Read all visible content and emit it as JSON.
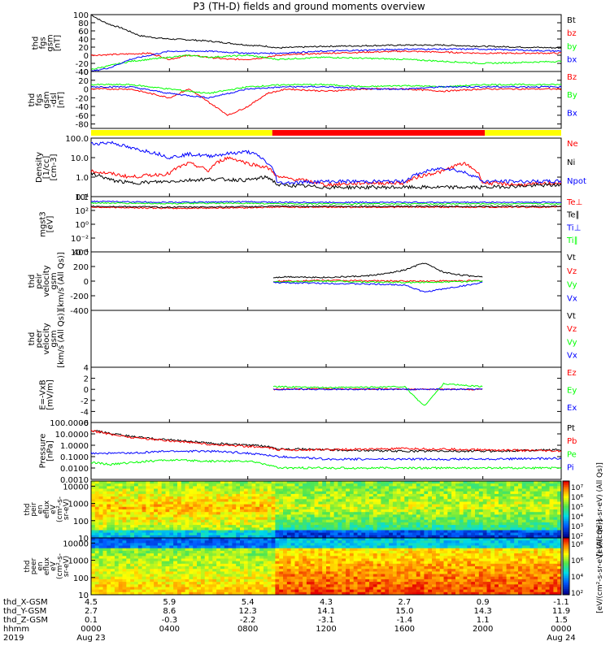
{
  "page": {
    "title": "P3 (TH-D) fields and ground moments overview"
  },
  "colors": {
    "black": "#000000",
    "red": "#ff0000",
    "green": "#00ff00",
    "blue": "#0000ff",
    "yellow": "#ffff00",
    "white": "#ffffff"
  },
  "status_bar": {
    "segments": [
      {
        "from_hour": 0,
        "to_hour": 9.25,
        "color": "#ffff00"
      },
      {
        "from_hour": 9.25,
        "to_hour": 20.1,
        "color": "#ff0000"
      },
      {
        "from_hour": 20.1,
        "to_hour": 24,
        "color": "#ffff00"
      }
    ]
  },
  "chart_data": [
    {
      "id": "fgs_gsm",
      "type": "line",
      "ylabel": [
        "thd",
        "fgs",
        "gsm",
        "[nT]"
      ],
      "ylim": [
        -40,
        100
      ],
      "yticks": [
        -40,
        -20,
        0,
        20,
        40,
        60,
        80,
        100
      ],
      "series": [
        {
          "name": "Bt",
          "color": "#000000",
          "x": [
            0,
            0.5,
            1,
            1.5,
            2,
            2.5,
            3,
            3.5,
            4,
            5,
            6,
            7,
            8,
            9,
            9.5,
            12,
            16,
            18,
            20,
            24
          ],
          "values": [
            100,
            85,
            75,
            68,
            58,
            48,
            45,
            42,
            40,
            38,
            35,
            30,
            25,
            22,
            18,
            22,
            25,
            25,
            22,
            18
          ]
        },
        {
          "name": "bz",
          "color": "#ff0000",
          "x": [
            0,
            3,
            4,
            5,
            6,
            7,
            8,
            9,
            9.5,
            12,
            16,
            20,
            24
          ],
          "values": [
            0,
            5,
            -10,
            0,
            -5,
            -10,
            -10,
            -5,
            0,
            5,
            10,
            5,
            5
          ]
        },
        {
          "name": "by",
          "color": "#00ff00",
          "x": [
            0,
            1,
            2,
            3,
            4,
            5,
            6,
            8,
            9.5,
            12,
            16,
            20,
            24
          ],
          "values": [
            -35,
            -25,
            -15,
            -10,
            -5,
            0,
            -5,
            0,
            -10,
            -5,
            -10,
            -20,
            -15
          ]
        },
        {
          "name": "bx",
          "color": "#0000ff",
          "x": [
            0,
            1,
            2,
            3,
            4,
            6,
            8,
            9.5,
            12,
            16,
            20,
            24
          ],
          "values": [
            -40,
            -30,
            -10,
            0,
            10,
            10,
            5,
            5,
            10,
            15,
            15,
            10
          ]
        }
      ]
    },
    {
      "id": "fgs_gse",
      "type": "line",
      "ylabel": [
        "thd",
        "fgs",
        "gsm",
        "-dsl",
        "[nT]"
      ],
      "ylim": [
        -90,
        40
      ],
      "yticks": [
        -80,
        -60,
        -40,
        -20,
        0,
        20,
        40
      ],
      "series": [
        {
          "name": "Bz",
          "color": "#ff0000",
          "x": [
            0,
            2,
            4,
            5,
            6,
            7,
            8,
            9,
            10,
            12,
            14,
            16,
            18,
            20,
            24
          ],
          "values": [
            0,
            0,
            -20,
            0,
            -30,
            -60,
            -40,
            -10,
            0,
            -5,
            0,
            0,
            -5,
            0,
            0
          ]
        },
        {
          "name": "By",
          "color": "#00ff00",
          "x": [
            0,
            2,
            4,
            6,
            8,
            10,
            12,
            14,
            16,
            18,
            20,
            24
          ],
          "values": [
            10,
            10,
            0,
            -10,
            5,
            10,
            10,
            5,
            8,
            5,
            10,
            10
          ]
        },
        {
          "name": "Bx",
          "color": "#0000ff",
          "x": [
            0,
            2,
            4,
            6,
            8,
            10,
            12,
            14,
            16,
            18,
            20,
            24
          ],
          "values": [
            5,
            5,
            -10,
            -20,
            0,
            5,
            5,
            0,
            0,
            5,
            5,
            5
          ]
        }
      ]
    },
    {
      "id": "density",
      "type": "line",
      "yscale": "log",
      "ylabel": [
        "Density",
        "[1/cc]",
        "[cm-3]"
      ],
      "ylim": [
        0.1,
        100
      ],
      "ytick_labels": [
        "0.1",
        "1.0",
        "10.0",
        "100.0"
      ],
      "yticks": [
        0.1,
        1,
        10,
        100
      ],
      "series": [
        {
          "name": "Ne",
          "color": "#ff0000",
          "x": [
            0,
            2,
            4,
            5,
            6,
            7,
            8,
            9,
            9.5,
            12,
            14,
            16,
            18,
            19,
            20,
            22,
            24
          ],
          "values": [
            2,
            1,
            1.5,
            5,
            2,
            10,
            5,
            3,
            1,
            0.4,
            0.5,
            0.5,
            2,
            5,
            0.5,
            0.4,
            0.5
          ]
        },
        {
          "name": "Ni",
          "color": "#000000",
          "x": [
            0,
            1,
            2,
            4,
            6,
            8,
            9,
            9.5,
            12,
            16,
            20,
            24
          ],
          "values": [
            1.5,
            0.7,
            0.5,
            0.6,
            0.8,
            0.7,
            1,
            0.4,
            0.3,
            0.3,
            0.3,
            0.4
          ]
        },
        {
          "name": "Npot",
          "color": "#0000ff",
          "x": [
            0,
            1,
            2,
            3,
            4,
            5,
            6,
            8,
            9,
            9.5,
            12,
            16,
            18,
            20,
            24
          ],
          "values": [
            50,
            60,
            30,
            20,
            10,
            15,
            12,
            20,
            5,
            0.5,
            0.6,
            0.6,
            3,
            0.6,
            0.6
          ]
        }
      ]
    },
    {
      "id": "temperature",
      "type": "line",
      "yscale": "log",
      "ylabel": [
        "mgst3",
        "[eV]"
      ],
      "ylim": [
        0.0001,
        10000
      ],
      "ytick_labels": [
        "10⁻⁴",
        "10⁻²",
        "10⁰",
        "10²",
        "10⁴"
      ],
      "yticks": [
        0.0001,
        0.01,
        1,
        100,
        10000
      ],
      "series": [
        {
          "name": "Te⊥",
          "color": "#ff0000",
          "x": [
            0,
            4,
            8,
            9.5,
            12,
            16,
            20,
            24
          ],
          "values": [
            300,
            200,
            250,
            300,
            300,
            300,
            300,
            300
          ]
        },
        {
          "name": "Te∥",
          "color": "#000000",
          "x": [
            0,
            4,
            8,
            9.5,
            12,
            16,
            20,
            24
          ],
          "values": [
            400,
            300,
            350,
            400,
            400,
            400,
            400,
            400
          ]
        },
        {
          "name": "Ti⊥",
          "color": "#0000ff",
          "x": [
            0,
            4,
            8,
            9.5,
            12,
            16,
            20,
            24
          ],
          "values": [
            2000,
            1500,
            1800,
            1500,
            1500,
            1500,
            1500,
            1500
          ]
        },
        {
          "name": "Ti∥",
          "color": "#00ff00",
          "x": [
            0,
            4,
            8,
            9.5,
            12,
            16,
            20,
            24
          ],
          "values": [
            1200,
            1000,
            1100,
            900,
            900,
            900,
            900,
            900
          ]
        }
      ]
    },
    {
      "id": "peir_velocity",
      "type": "line",
      "ylabel": [
        "thd",
        "peir",
        "velocity",
        "gsm",
        "[km/s (All Qs)]"
      ],
      "ylim": [
        -400,
        400
      ],
      "yticks": [
        -400,
        -200,
        0,
        200,
        400
      ],
      "series": [
        {
          "name": "Vt",
          "color": "#000000",
          "x": [
            9.3,
            10,
            12,
            14,
            15,
            16,
            17,
            18,
            19,
            20
          ],
          "values": [
            50,
            60,
            50,
            70,
            100,
            150,
            250,
            120,
            80,
            60
          ]
        },
        {
          "name": "Vz",
          "color": "#ff0000",
          "x": [
            9.3,
            12,
            16,
            20
          ],
          "values": [
            0,
            10,
            0,
            5
          ]
        },
        {
          "name": "Vy",
          "color": "#00ff00",
          "x": [
            9.3,
            12,
            16,
            20
          ],
          "values": [
            -10,
            0,
            -20,
            0
          ]
        },
        {
          "name": "Vx",
          "color": "#0000ff",
          "x": [
            9.3,
            12,
            16,
            17,
            20
          ],
          "values": [
            -20,
            -30,
            -50,
            -150,
            -20
          ]
        }
      ]
    },
    {
      "id": "peer_velocity",
      "type": "line",
      "ylabel": [
        "thd",
        "peer",
        "velocity",
        "gsm",
        "[km/s (All Qs)]"
      ],
      "series": [
        {
          "name": "Vt",
          "color": "#000000",
          "x": [],
          "values": []
        },
        {
          "name": "Vz",
          "color": "#ff0000",
          "x": [],
          "values": []
        },
        {
          "name": "Vy",
          "color": "#00ff00",
          "x": [],
          "values": []
        },
        {
          "name": "Vx",
          "color": "#0000ff",
          "x": [],
          "values": []
        }
      ]
    },
    {
      "id": "e_field",
      "type": "line",
      "ylabel": [
        "E=-VxB",
        "[mV/m]"
      ],
      "ylim": [
        -6,
        4
      ],
      "yticks": [
        -6,
        -4,
        -2,
        0,
        2,
        4
      ],
      "series": [
        {
          "name": "Ez",
          "color": "#ff0000",
          "x": [
            9.3,
            12,
            16,
            20
          ],
          "values": [
            0,
            0.1,
            0,
            0
          ]
        },
        {
          "name": "Ey",
          "color": "#00ff00",
          "x": [
            9.3,
            12,
            16,
            17,
            18,
            20
          ],
          "values": [
            0.5,
            0.3,
            0.5,
            -3,
            1,
            0.5
          ]
        },
        {
          "name": "Ex",
          "color": "#0000ff",
          "x": [
            9.3,
            12,
            16,
            20
          ],
          "values": [
            0,
            0,
            0,
            0
          ]
        }
      ]
    },
    {
      "id": "pressure",
      "type": "line",
      "yscale": "log",
      "ylabel": [
        "Pressure",
        "[nPa]"
      ],
      "ylim": [
        0.001,
        100
      ],
      "ytick_labels": [
        "0.0010",
        "0.0100",
        "0.1000",
        "1.0000",
        "10.0000",
        "100.0000"
      ],
      "yticks": [
        0.001,
        0.01,
        0.1,
        1,
        10,
        100
      ],
      "series": [
        {
          "name": "Pt",
          "color": "#000000",
          "x": [
            0,
            1,
            2,
            3,
            4,
            6,
            8,
            9,
            9.5,
            12,
            16,
            20,
            24
          ],
          "values": [
            20,
            10,
            6,
            4,
            3,
            1.5,
            1,
            0.8,
            0.5,
            0.4,
            0.3,
            0.3,
            0.4
          ]
        },
        {
          "name": "Pb",
          "color": "#ff0000",
          "x": [
            0,
            1,
            2,
            3,
            4,
            6,
            8,
            9,
            9.5,
            12,
            16,
            20,
            24
          ],
          "values": [
            18,
            9,
            5,
            3.5,
            2.5,
            1.2,
            0.8,
            0.6,
            0.4,
            0.4,
            0.5,
            0.4,
            0.3
          ]
        },
        {
          "name": "Pe",
          "color": "#00ff00",
          "x": [
            0,
            1,
            2,
            4,
            6,
            8,
            9.5,
            12,
            16,
            20,
            24
          ],
          "values": [
            0.03,
            0.02,
            0.03,
            0.05,
            0.04,
            0.04,
            0.01,
            0.01,
            0.01,
            0.01,
            0.01
          ]
        },
        {
          "name": "Pi",
          "color": "#0000ff",
          "x": [
            0,
            2,
            4,
            6,
            8,
            9.5,
            12,
            16,
            20,
            24
          ],
          "values": [
            0.2,
            0.2,
            0.3,
            0.3,
            0.2,
            0.1,
            0.06,
            0.06,
            0.06,
            0.07
          ]
        }
      ]
    },
    {
      "id": "peir_spectrogram",
      "type": "heatmap",
      "ylabel": [
        "thd",
        "peir",
        "en",
        "eflux",
        "eV",
        "(cm²-s-",
        "sr-eV)"
      ],
      "yticks": [
        10,
        100,
        1000,
        10000
      ],
      "ytick_labels": [
        "10",
        "100",
        "1000",
        "10000"
      ]
    },
    {
      "id": "peer_spectrogram",
      "type": "heatmap",
      "ylabel": [
        "thd",
        "peer",
        "en",
        "eflux",
        "eV",
        "(cm²-s-",
        "sr-eV)"
      ],
      "yticks": [
        10,
        100,
        1000,
        10000
      ],
      "ytick_labels": [
        "10",
        "100",
        "1000",
        "10000"
      ]
    }
  ],
  "colorbars": [
    {
      "tick_labels": [
        "10⁷",
        "10⁶",
        "10⁵",
        "10⁴",
        "10³",
        "10²"
      ],
      "label": "[eV/(cm²-s-sr-eV) (All Qs)]"
    },
    {
      "tick_labels": [
        "10⁸",
        "10⁶",
        "10⁴",
        "10²"
      ],
      "label": "[eV/(cm²-s-sr-eV) (All Qs)]"
    }
  ],
  "time_axis": {
    "row_labels": [
      "thd_X-GSM",
      "thd_Y-GSM",
      "thd_Z-GSM",
      "hhmm",
      "2019"
    ],
    "columns": [
      {
        "x": [
          "4.5",
          "2.7",
          "0.1"
        ],
        "hhmm": "0000",
        "date": "Aug 23"
      },
      {
        "x": [
          "5.9",
          "8.6",
          "-0.3"
        ],
        "hhmm": "0400",
        "date": ""
      },
      {
        "x": [
          "5.4",
          "12.3",
          "-2.2"
        ],
        "hhmm": "0800",
        "date": ""
      },
      {
        "x": [
          "4.3",
          "14.1",
          "-3.1"
        ],
        "hhmm": "1200",
        "date": ""
      },
      {
        "x": [
          "2.7",
          "15.0",
          "-1.4"
        ],
        "hhmm": "1600",
        "date": ""
      },
      {
        "x": [
          "0.9",
          "14.3",
          "1.1"
        ],
        "hhmm": "2000",
        "date": ""
      },
      {
        "x": [
          "-1.1",
          "11.9",
          "1.5"
        ],
        "hhmm": "0000",
        "date": "Aug 24"
      }
    ]
  }
}
